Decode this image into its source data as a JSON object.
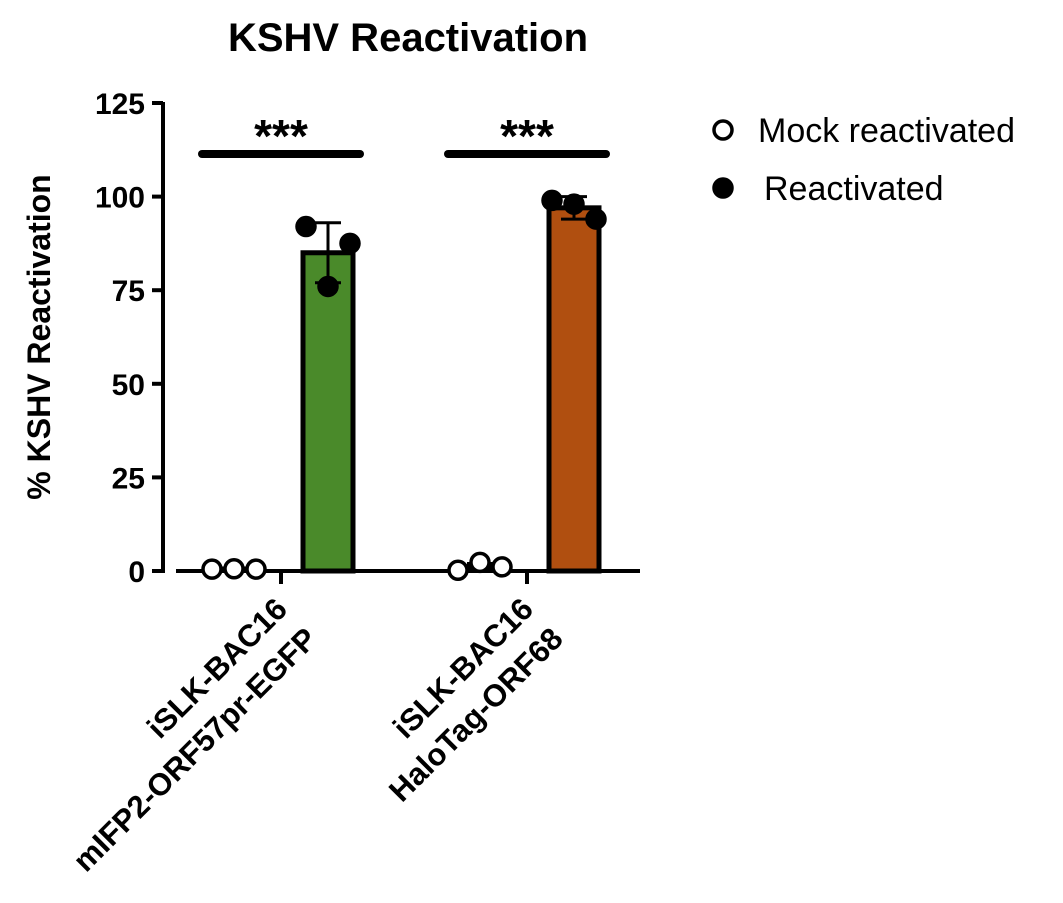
{
  "chart_data": {
    "type": "bar",
    "title": "KSHV Reactivation",
    "ylabel": "% KSHV Reactivation",
    "xlabel": "",
    "ylim": [
      0,
      125
    ],
    "yticks": [
      0,
      25,
      50,
      75,
      100,
      125
    ],
    "grid": false,
    "legend_position": "top-right",
    "groups": [
      {
        "label_lines": [
          "iSLK-BAC16",
          "mIFP2-ORF57pr-EGFP"
        ],
        "significance": "***"
      },
      {
        "label_lines": [
          "iSLK-BAC16",
          "HaloTag-ORF68"
        ],
        "significance": "***"
      }
    ],
    "series": [
      {
        "name": "Mock reactivated",
        "marker": "open-circle",
        "values": [
          0.5,
          1.2
        ],
        "error": [
          0.3,
          0.8
        ],
        "points": [
          [
            0.5,
            0.6,
            0.5
          ],
          [
            0.2,
            2.3,
            1.1
          ]
        ],
        "bar_colors": [
          "#ffffff",
          "#ffffff"
        ]
      },
      {
        "name": "Reactivated",
        "marker": "filled-circle",
        "values": [
          85,
          97
        ],
        "error": [
          8,
          3
        ],
        "points": [
          [
            92,
            87.5,
            76
          ],
          [
            99,
            94,
            98
          ]
        ],
        "bar_colors": [
          "#4a8a2a",
          "#b04f10"
        ]
      }
    ]
  }
}
